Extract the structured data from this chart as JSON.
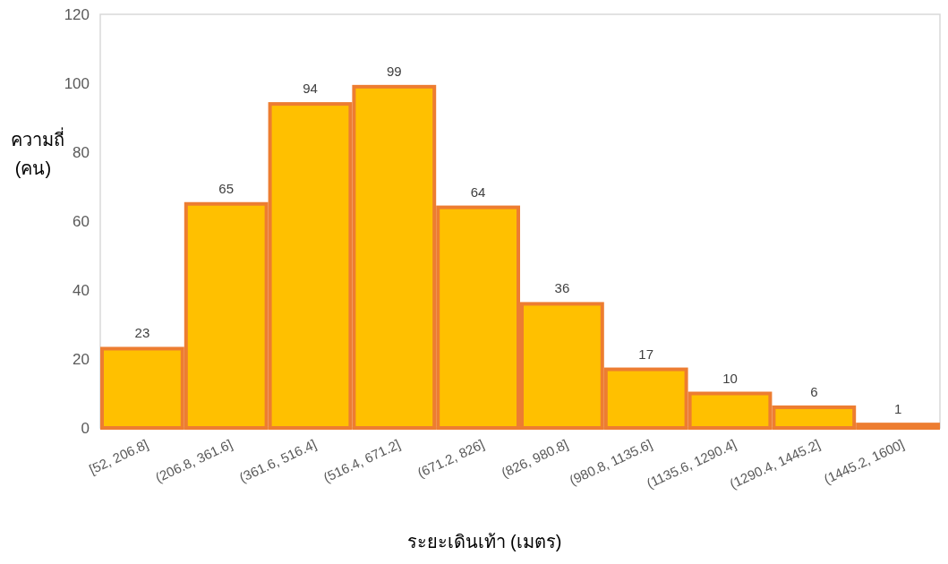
{
  "chart_data": {
    "type": "bar",
    "xlabel": "ระยะเดินเท้า (เมตร)",
    "ylabel": "ความถี่ (คน)",
    "categories": [
      "[52, 206.8]",
      "(206.8, 361.6]",
      "(361.6, 516.4]",
      "(516.4, 671.2]",
      "(671.2, 826]",
      "(826, 980.8]",
      "(980.8, 1135.6]",
      "(1135.6, 1290.4]",
      "(1290.4, 1445.2]",
      "(1445.2, 1600]"
    ],
    "values": [
      23,
      65,
      94,
      99,
      64,
      36,
      17,
      10,
      6,
      1
    ],
    "color": "#ffc000",
    "ylim": [
      0,
      120
    ],
    "yticks": [
      0,
      20,
      40,
      60,
      80,
      100,
      120
    ],
    "data_labels": true
  }
}
